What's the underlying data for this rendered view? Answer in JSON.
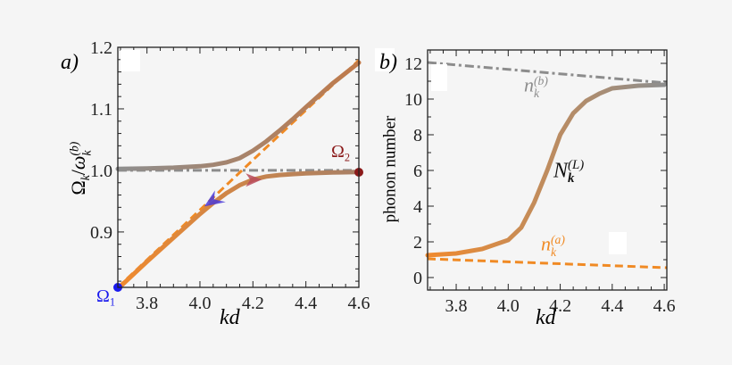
{
  "background": "#f5f5f5",
  "chart_data": [
    {
      "panel_label": "a)",
      "type": "line",
      "xlabel": "kd",
      "ylabel": {
        "main": "Ω",
        "main_sub": "k",
        "slash": "/",
        "denom": "ω",
        "denom_sub": "k",
        "denom_sup": "(b)"
      },
      "xlim": [
        3.69,
        4.6
      ],
      "ylim": [
        0.81,
        1.2
      ],
      "xticks": [
        3.8,
        4.0,
        4.2,
        4.4,
        4.6
      ],
      "xtick_labels": [
        "3.8",
        "4.0",
        "4.2",
        "4.4",
        "4.6"
      ],
      "yticks": [
        0.9,
        1.0,
        1.1,
        1.2
      ],
      "ytick_labels": [
        "0.9",
        "1.0",
        "1.1",
        "1.2"
      ],
      "grid": false,
      "series": [
        {
          "style": "dash-dot",
          "color": "#8c8c8c",
          "x": [
            3.69,
            4.6
          ],
          "y": [
            1.0,
            1.0
          ]
        },
        {
          "style": "dashed",
          "color": "#f08a24",
          "x": [
            3.69,
            4.6
          ],
          "y": [
            0.81,
            1.179
          ]
        },
        {
          "style": "solid-gradient",
          "color_start": "#8e8e8e",
          "color_end": "#c07a4a",
          "x": [
            3.69,
            3.8,
            3.9,
            4.0,
            4.05,
            4.1,
            4.15,
            4.2,
            4.25,
            4.3,
            4.35,
            4.4,
            4.5,
            4.6
          ],
          "y": [
            1.0025,
            1.0033,
            1.0044,
            1.0068,
            1.009,
            1.013,
            1.02,
            1.032,
            1.047,
            1.0645,
            1.083,
            1.1027,
            1.141,
            1.175
          ]
        },
        {
          "style": "solid-gradient",
          "color_start": "#f08a2e",
          "color_end": "#a88066",
          "x": [
            3.69,
            3.8,
            3.9,
            4.0,
            4.05,
            4.1,
            4.15,
            4.2,
            4.25,
            4.3,
            4.35,
            4.4,
            4.5,
            4.6
          ],
          "y": [
            0.8075,
            0.8517,
            0.8906,
            0.9292,
            0.947,
            0.963,
            0.976,
            0.985,
            0.99,
            0.9925,
            0.994,
            0.9953,
            0.9966,
            0.9973
          ]
        }
      ],
      "points": [
        {
          "label": "Ω",
          "label_sub": "1",
          "color": "#1a1aee",
          "x": 3.69,
          "y": 0.81
        },
        {
          "label": "Ω",
          "label_sub": "2",
          "color": "#8b1a1a",
          "x": 4.6,
          "y": 0.997
        }
      ],
      "arrows": [
        {
          "color": "#4a3ad8",
          "x": 4.05,
          "y": 0.95,
          "direction": "down-left"
        },
        {
          "color": "#b84a5a",
          "x": 4.2,
          "y": 0.985,
          "direction": "right"
        }
      ]
    },
    {
      "panel_label": "b)",
      "type": "line",
      "xlabel": "kd",
      "ylabel": "phonon number",
      "xlim": [
        3.69,
        4.61
      ],
      "ylim": [
        -0.7,
        12.75
      ],
      "xticks": [
        3.8,
        4.0,
        4.2,
        4.4,
        4.6
      ],
      "xtick_labels": [
        "3.8",
        "4.0",
        "4.2",
        "4.4",
        "4.6"
      ],
      "yticks": [
        0,
        2,
        4,
        6,
        8,
        10,
        12
      ],
      "ytick_labels": [
        "0",
        "2",
        "4",
        "6",
        "8",
        "10",
        "12"
      ],
      "grid": false,
      "series": [
        {
          "name": {
            "base": "n",
            "sub": "k",
            "sup": "(b)"
          },
          "style": "dash-dot",
          "color": "#8c8c8c",
          "x": [
            3.69,
            4.61
          ],
          "y": [
            12.05,
            10.9
          ]
        },
        {
          "name": {
            "base": "n",
            "sub": "k",
            "sup": "(a)"
          },
          "style": "dashed",
          "color": "#f08a24",
          "x": [
            3.69,
            4.61
          ],
          "y": [
            1.05,
            0.55
          ]
        },
        {
          "name": {
            "base": "N",
            "sub": "k",
            "sup": "(L)"
          },
          "style": "solid-gradient",
          "color_start": "#f08a2e",
          "color_end": "#8e8e8e",
          "x": [
            3.69,
            3.8,
            3.9,
            4.0,
            4.05,
            4.1,
            4.15,
            4.2,
            4.25,
            4.3,
            4.35,
            4.4,
            4.5,
            4.6
          ],
          "y": [
            1.25,
            1.35,
            1.6,
            2.1,
            2.8,
            4.2,
            6.0,
            8.0,
            9.2,
            9.9,
            10.3,
            10.6,
            10.75,
            10.8
          ]
        }
      ]
    }
  ]
}
